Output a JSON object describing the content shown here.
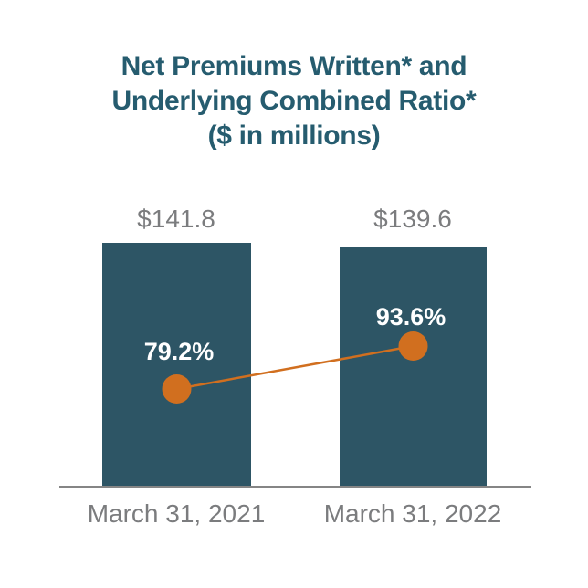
{
  "chart": {
    "title_lines": [
      "Net Premiums Written* and",
      "Underlying Combined Ratio*",
      "($ in millions)"
    ],
    "bars": [
      {
        "category": "March 31, 2021",
        "value_label": "$141.8",
        "ratio_label": "79.2%"
      },
      {
        "category": "March 31, 2022",
        "value_label": "$139.6",
        "ratio_label": "93.6%"
      }
    ],
    "colors": {
      "bar_fill": "#2D5565",
      "line_and_markers": "#D16F1F",
      "title_text": "#265C6F",
      "value_text": "#7B7C7E",
      "category_text": "#7B7C7E",
      "axis_line": "#858585",
      "ratio_text": "#FFFFFF",
      "background": "#FFFFFF"
    }
  },
  "chart_data": {
    "type": "bar",
    "categories": [
      "March 31, 2021",
      "March 31, 2022"
    ],
    "series": [
      {
        "name": "Net Premiums Written ($ in millions)",
        "type": "bar",
        "values": [
          141.8,
          139.6
        ],
        "labels": [
          "$141.8",
          "$139.6"
        ]
      },
      {
        "name": "Underlying Combined Ratio (%)",
        "type": "line",
        "values": [
          79.2,
          93.6
        ],
        "labels": [
          "79.2%",
          "93.6%"
        ]
      }
    ],
    "title": "Net Premiums Written* and Underlying Combined Ratio* ($ in millions)",
    "xlabel": "",
    "ylabel": "",
    "ylim": [
      0,
      150
    ],
    "legend": "none",
    "grid": false
  }
}
